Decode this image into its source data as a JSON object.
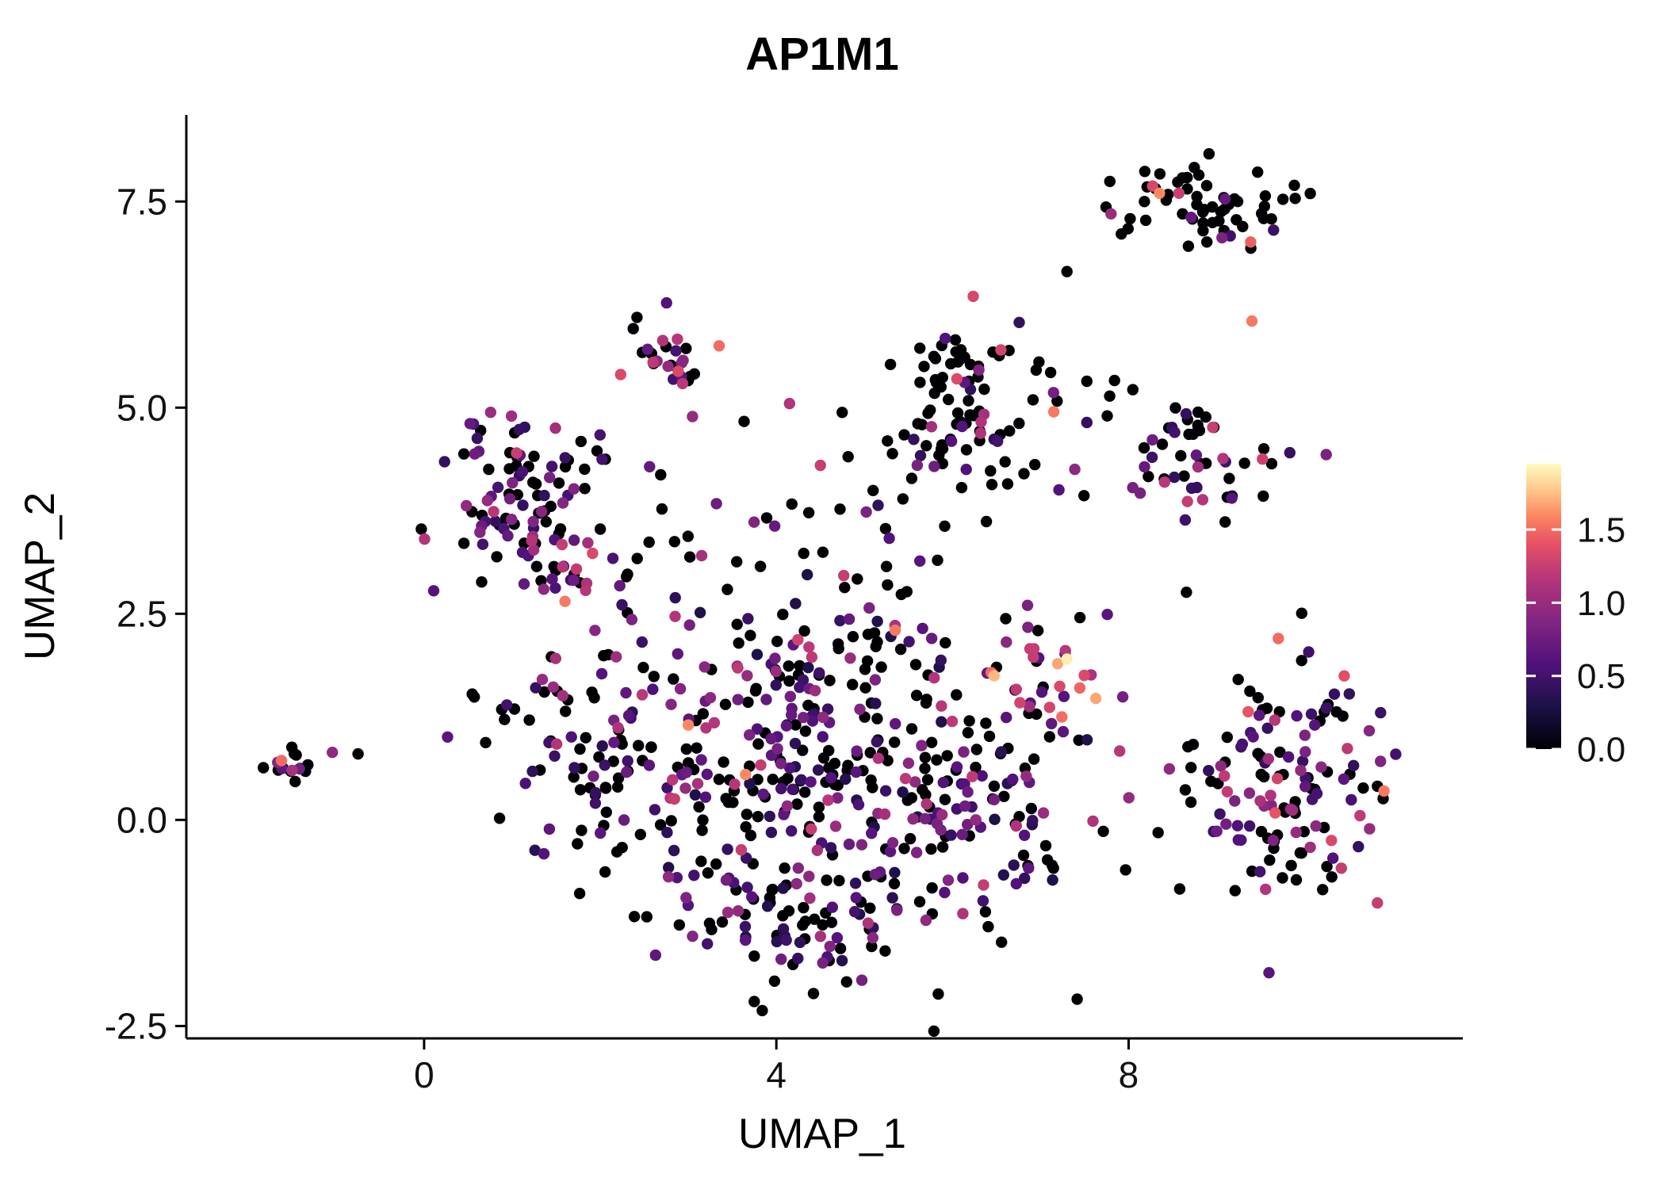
{
  "title": "AP1M1",
  "background_color": "#ffffff",
  "chart_data": {
    "type": "scatter",
    "title": "AP1M1",
    "xlabel": "UMAP_1",
    "ylabel": "UMAP_2",
    "xlim": [
      -2.7,
      11.75
    ],
    "ylim": [
      -2.65,
      8.55
    ],
    "grid": false,
    "legend_position": "right",
    "x_ticks": [
      {
        "v": 0,
        "label": "0"
      },
      {
        "v": 4,
        "label": "4"
      },
      {
        "v": 8,
        "label": "8"
      }
    ],
    "y_ticks": [
      {
        "v": -2.5,
        "label": "-2.5"
      },
      {
        "v": 0.0,
        "label": "0.0"
      },
      {
        "v": 2.5,
        "label": "2.5"
      },
      {
        "v": 5.0,
        "label": "5.0"
      },
      {
        "v": 7.5,
        "label": "7.5"
      }
    ],
    "point_radius_px": 7.2,
    "color_scale": {
      "name": "magma",
      "limits": [
        0,
        1.95
      ],
      "ticks": [
        {
          "v": 0.0,
          "label": "0.0"
        },
        {
          "v": 0.5,
          "label": "0.5"
        },
        {
          "v": 1.0,
          "label": "1.0"
        },
        {
          "v": 1.5,
          "label": "1.5"
        }
      ],
      "stops": [
        {
          "t": 0.0,
          "c": "#000004"
        },
        {
          "t": 0.15,
          "c": "#1d1147"
        },
        {
          "t": 0.3,
          "c": "#51127c"
        },
        {
          "t": 0.45,
          "c": "#822681"
        },
        {
          "t": 0.6,
          "c": "#b63679"
        },
        {
          "t": 0.72,
          "c": "#e65164"
        },
        {
          "t": 0.82,
          "c": "#fb8861"
        },
        {
          "t": 0.9,
          "c": "#fec287"
        },
        {
          "t": 1.0,
          "c": "#fcfdbf"
        }
      ]
    },
    "clusters": [
      {
        "name": "far-left-island",
        "cx": -1.45,
        "cy": 0.68,
        "sx": 0.17,
        "sy": 0.11,
        "n": 16,
        "seed": 11,
        "p0": 0.72,
        "lo": 0.6,
        "hi": 1.6
      },
      {
        "name": "left-upper",
        "cx": 1.15,
        "cy": 3.8,
        "sx": 0.45,
        "sy": 0.5,
        "n": 95,
        "seed": 22,
        "p0": 0.52,
        "lo": 0.4,
        "hi": 1.35
      },
      {
        "name": "left-upper-tail",
        "cx": 1.45,
        "cy": 2.9,
        "sx": 0.35,
        "sy": 0.3,
        "n": 18,
        "seed": 23,
        "p0": 0.5,
        "lo": 0.4,
        "hi": 1.3
      },
      {
        "name": "top-small",
        "cx": 2.85,
        "cy": 5.65,
        "sx": 0.28,
        "sy": 0.28,
        "n": 26,
        "seed": 33,
        "p0": 0.42,
        "lo": 0.5,
        "hi": 1.35
      },
      {
        "name": "center-top",
        "cx": 6.15,
        "cy": 5.3,
        "sx": 0.45,
        "sy": 0.4,
        "n": 60,
        "seed": 44,
        "p0": 0.78,
        "lo": 0.4,
        "hi": 1.35
      },
      {
        "name": "center-top-lower",
        "cx": 6.0,
        "cy": 4.4,
        "sx": 0.55,
        "sy": 0.3,
        "n": 30,
        "seed": 45,
        "p0": 0.7,
        "lo": 0.4,
        "hi": 1.2
      },
      {
        "name": "top-right",
        "cx": 8.85,
        "cy": 7.45,
        "sx": 0.5,
        "sy": 0.28,
        "n": 62,
        "seed": 55,
        "p0": 0.74,
        "lo": 0.4,
        "hi": 1.5
      },
      {
        "name": "right-middle",
        "cx": 8.8,
        "cy": 4.3,
        "sx": 0.42,
        "sy": 0.35,
        "n": 48,
        "seed": 66,
        "p0": 0.68,
        "lo": 0.4,
        "hi": 1.35
      },
      {
        "name": "blob-core",
        "cx": 4.6,
        "cy": 0.35,
        "sx": 1.15,
        "sy": 0.85,
        "n": 270,
        "seed": 77,
        "p0": 0.5,
        "lo": 0.3,
        "hi": 1.25
      },
      {
        "name": "blob-left",
        "cx": 2.0,
        "cy": 0.8,
        "sx": 0.5,
        "sy": 0.75,
        "n": 85,
        "seed": 88,
        "p0": 0.45,
        "lo": 0.35,
        "hi": 1.25
      },
      {
        "name": "blob-bottom",
        "cx": 4.5,
        "cy": -1.25,
        "sx": 0.85,
        "sy": 0.45,
        "n": 75,
        "seed": 99,
        "p0": 0.5,
        "lo": 0.3,
        "hi": 1.15
      },
      {
        "name": "blob-top",
        "cx": 4.3,
        "cy": 2.05,
        "sx": 0.95,
        "sy": 0.4,
        "n": 65,
        "seed": 110,
        "p0": 0.55,
        "lo": 0.3,
        "hi": 1.3
      },
      {
        "name": "blob-right-hot",
        "cx": 6.9,
        "cy": 1.75,
        "sx": 0.42,
        "sy": 0.4,
        "n": 38,
        "seed": 121,
        "p0": 0.25,
        "lo": 0.6,
        "hi": 1.75
      },
      {
        "name": "blob-right",
        "cx": 6.35,
        "cy": 0.2,
        "sx": 0.55,
        "sy": 0.75,
        "n": 65,
        "seed": 132,
        "p0": 0.6,
        "lo": 0.3,
        "hi": 1.2
      },
      {
        "name": "right-lower",
        "cx": 9.85,
        "cy": 0.45,
        "sx": 0.62,
        "sy": 0.8,
        "n": 135,
        "seed": 143,
        "p0": 0.42,
        "lo": 0.4,
        "hi": 1.45
      },
      {
        "name": "mid-band-scatter",
        "cx": 4.3,
        "cy": 3.4,
        "sx": 1.5,
        "sy": 0.5,
        "n": 40,
        "seed": 154,
        "p0": 0.6,
        "lo": 0.3,
        "hi": 1.25
      },
      {
        "name": "bridge-right",
        "cx": 7.7,
        "cy": 4.7,
        "sx": 0.6,
        "sy": 0.6,
        "n": 16,
        "seed": 165,
        "p0": 0.7,
        "lo": 0.4,
        "hi": 1.2
      },
      {
        "name": "left-arm-small",
        "cx": 0.7,
        "cy": 1.3,
        "sx": 0.25,
        "sy": 0.17,
        "n": 8,
        "seed": 176,
        "p0": 0.5,
        "lo": 0.4,
        "hi": 1.0
      }
    ],
    "highlight_points": [
      {
        "x": -1.62,
        "y": 0.72,
        "v": 1.5
      },
      {
        "x": -1.5,
        "y": 0.6,
        "v": 1.1
      },
      {
        "x": -0.75,
        "y": 0.8,
        "v": 0
      },
      {
        "x": 1.05,
        "y": 4.45,
        "v": 1.25
      },
      {
        "x": 1.6,
        "y": 2.65,
        "v": 1.55
      },
      {
        "x": 3.35,
        "y": 5.75,
        "v": 1.5
      },
      {
        "x": 2.6,
        "y": 5.55,
        "v": 1.2
      },
      {
        "x": 4.15,
        "y": 5.05,
        "v": 1.15
      },
      {
        "x": 4.5,
        "y": 4.3,
        "v": 1.25
      },
      {
        "x": 5.35,
        "y": 2.3,
        "v": 1.55
      },
      {
        "x": 6.05,
        "y": 5.35,
        "v": 1.35
      },
      {
        "x": 6.55,
        "y": 5.7,
        "v": 1.3
      },
      {
        "x": 7.15,
        "y": 4.95,
        "v": 1.55
      },
      {
        "x": 7.3,
        "y": 6.65,
        "v": 0
      },
      {
        "x": 8.35,
        "y": 7.6,
        "v": 1.6
      },
      {
        "x": 7.8,
        "y": 7.35,
        "v": 1.0
      },
      {
        "x": 9.4,
        "y": 6.05,
        "v": 1.55
      },
      {
        "x": 7.3,
        "y": 1.95,
        "v": 1.9
      },
      {
        "x": 9.7,
        "y": 2.2,
        "v": 1.5
      },
      {
        "x": 10.9,
        "y": 0.35,
        "v": 1.55
      },
      {
        "x": 3.0,
        "y": 1.15,
        "v": 1.6
      },
      {
        "x": 3.65,
        "y": 0.55,
        "v": 1.6
      }
    ]
  }
}
